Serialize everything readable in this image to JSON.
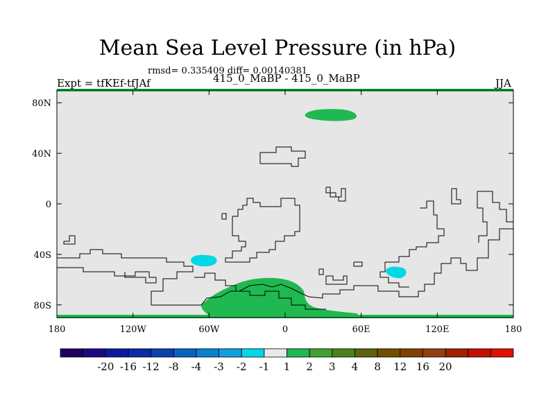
{
  "title": "Mean Sea Level Pressure (in hPa)",
  "stats": "rmsd= 0.335409 diff= 0.00140381",
  "left_label": "Expt = tfKEf-tfJAf",
  "center_label": "415_0_MaBP - 415_0_MaBP",
  "right_label": "JJA",
  "map": {
    "lon_range": [
      -180,
      180
    ],
    "lat_range": [
      -90,
      90
    ],
    "x_ticks": [
      {
        "lon": -180,
        "label": "180"
      },
      {
        "lon": -120,
        "label": "120W"
      },
      {
        "lon": -60,
        "label": "60W"
      },
      {
        "lon": 0,
        "label": "0"
      },
      {
        "lon": 60,
        "label": "60E"
      },
      {
        "lon": 120,
        "label": "120E"
      },
      {
        "lon": 180,
        "label": "180"
      }
    ],
    "y_ticks": [
      {
        "lat": 80,
        "label": "80N"
      },
      {
        "lat": 40,
        "label": "40N"
      },
      {
        "lat": 0,
        "label": "0"
      },
      {
        "lat": -40,
        "label": "40S"
      },
      {
        "lat": -80,
        "label": "80S"
      }
    ],
    "background_color": "#e6e6e6"
  },
  "colorbar": {
    "colors": [
      "#200060",
      "#1a0a80",
      "#0a1aa0",
      "#0a2aa8",
      "#0a40b0",
      "#0a60c0",
      "#0a80d0",
      "#10a0e0",
      "#00d8e8",
      "#e8e8e8",
      "#20b850",
      "#40a030",
      "#4a8020",
      "#606010",
      "#705000",
      "#804000",
      "#904010",
      "#a02000",
      "#c01000",
      "#e01000"
    ],
    "labels": [
      "-20",
      "-16",
      "-12",
      "-8",
      "-4",
      "-3",
      "-2",
      "-1",
      "1",
      "2",
      "3",
      "4",
      "8",
      "12",
      "16",
      "20"
    ]
  }
}
